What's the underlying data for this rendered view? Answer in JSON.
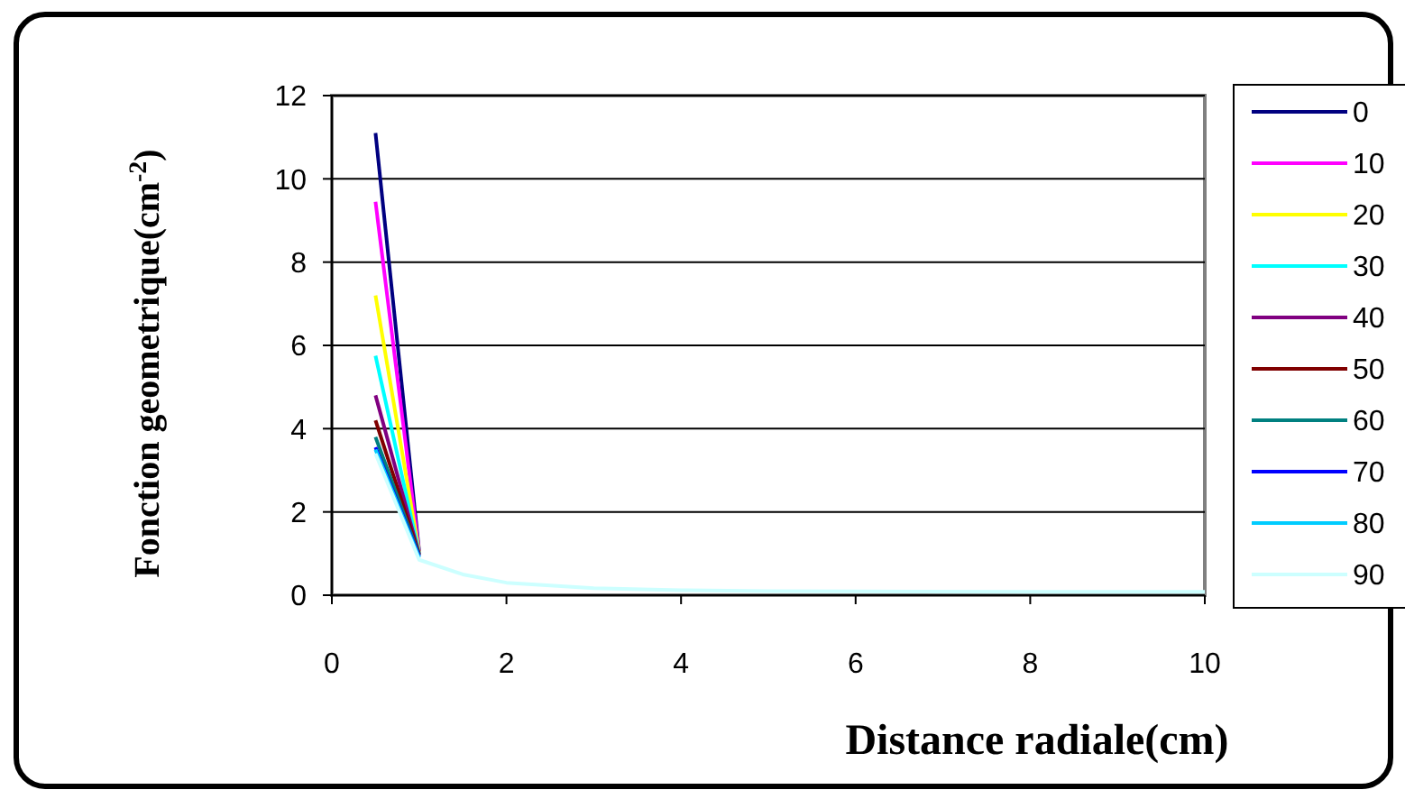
{
  "chart_data": {
    "type": "line",
    "xlabel": "Distance radiale(cm)",
    "ylabel": "Fonction geometrique(cm$^{-2}$)",
    "x": [
      0.5,
      1,
      1.5,
      2,
      3,
      4,
      5,
      6,
      8,
      10
    ],
    "xlim": [
      0,
      10
    ],
    "xticks": [
      0,
      2,
      4,
      6,
      8,
      10
    ],
    "ylim": [
      0,
      12
    ],
    "yticks": [
      0,
      2,
      4,
      6,
      8,
      10,
      12
    ],
    "grid": "y",
    "legend": "right",
    "marker": "none",
    "line_style": "solid",
    "series": [
      {
        "name": "0",
        "color": "#000080",
        "values": [
          11.1,
          1.05,
          null,
          null,
          null,
          null,
          null,
          null,
          null,
          null
        ]
      },
      {
        "name": "10",
        "color": "#ff00ff",
        "values": [
          9.45,
          1.03,
          null,
          null,
          null,
          null,
          null,
          null,
          null,
          null
        ]
      },
      {
        "name": "20",
        "color": "#ffff00",
        "values": [
          7.2,
          1.02,
          null,
          null,
          null,
          null,
          null,
          null,
          null,
          null
        ]
      },
      {
        "name": "30",
        "color": "#00ffff",
        "values": [
          5.75,
          1.0,
          null,
          null,
          null,
          null,
          null,
          null,
          null,
          null
        ]
      },
      {
        "name": "40",
        "color": "#800080",
        "values": [
          4.8,
          0.98,
          null,
          null,
          null,
          null,
          null,
          null,
          null,
          null
        ]
      },
      {
        "name": "50",
        "color": "#800000",
        "values": [
          4.2,
          0.97,
          null,
          null,
          null,
          null,
          null,
          null,
          null,
          null
        ]
      },
      {
        "name": "60",
        "color": "#008080",
        "values": [
          3.8,
          0.95,
          null,
          null,
          null,
          null,
          null,
          null,
          null,
          null
        ]
      },
      {
        "name": "70",
        "color": "#0000ff",
        "values": [
          3.55,
          0.93,
          null,
          null,
          null,
          null,
          null,
          null,
          null,
          null
        ]
      },
      {
        "name": "80",
        "color": "#00ccff",
        "values": [
          3.5,
          0.9,
          null,
          null,
          null,
          null,
          null,
          null,
          null,
          null
        ]
      },
      {
        "name": "90",
        "color": "#ccffff",
        "values": [
          3.4,
          0.85,
          0.5,
          0.3,
          0.17,
          0.12,
          0.1,
          0.09,
          0.08,
          0.08
        ]
      }
    ]
  }
}
